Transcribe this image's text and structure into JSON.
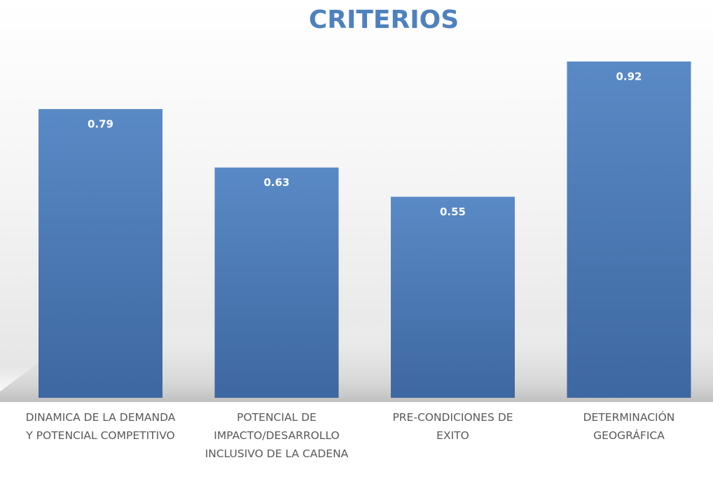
{
  "chart_data": {
    "type": "bar",
    "title": "CRITERIOS",
    "categories": [
      "DINAMICA DE LA DEMANDA Y POTENCIAL COMPETITIVO",
      "POTENCIAL DE IMPACTO/DESARROLLO INCLUSIVO DE LA CADENA",
      "PRE-CONDICIONES DE EXITO",
      "DETERMINACIÓN GEOGRÁFICA"
    ],
    "values": [
      0.79,
      0.63,
      0.55,
      0.92
    ],
    "color": "#4f81bd"
  }
}
